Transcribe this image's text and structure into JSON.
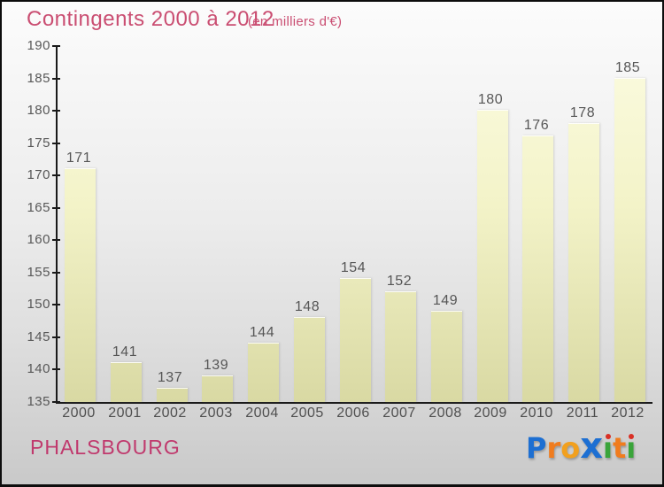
{
  "title": {
    "text": "Contingents 2000 à 2012",
    "subtitle": "(en milliers d'€)",
    "color": "#ca4e72"
  },
  "footer": {
    "place": "PHALSBOURG",
    "color": "#c0396d"
  },
  "logo": {
    "text": "Proxiti",
    "letters": [
      {
        "glyph": "P",
        "color": "#1d6fd2"
      },
      {
        "glyph": "r",
        "color": "#f07c1e"
      },
      {
        "glyph": "o",
        "color": "#f2a01e"
      },
      {
        "glyph": "x",
        "color": "#1d6fd2",
        "big": true
      },
      {
        "glyph": "ı",
        "color": "#3aa43a",
        "dot": "#d93025"
      },
      {
        "glyph": "t",
        "color": "#f07c1e"
      },
      {
        "glyph": "ı",
        "color": "#3aa43a",
        "dot": "#d93025"
      }
    ]
  },
  "chart_data": {
    "type": "bar",
    "title": "Contingents 2000 à 2012",
    "subtitle": "(en milliers d'€)",
    "categories": [
      "2000",
      "2001",
      "2002",
      "2003",
      "2004",
      "2005",
      "2006",
      "2007",
      "2008",
      "2009",
      "2010",
      "2011",
      "2012"
    ],
    "values": [
      171,
      141,
      137,
      139,
      144,
      148,
      154,
      152,
      149,
      180,
      176,
      178,
      185
    ],
    "ylim": [
      135,
      190
    ],
    "ytick_step": 5,
    "yticks": [
      135,
      140,
      145,
      150,
      155,
      160,
      165,
      170,
      175,
      180,
      185,
      190
    ],
    "grid": false,
    "legend_position": "none",
    "value_labels": true,
    "bar_color_top": "#fbfbe0",
    "bar_color_bottom": "#d9d9a3",
    "axis_color": "#1a1a1a",
    "label_color": "#565656"
  }
}
